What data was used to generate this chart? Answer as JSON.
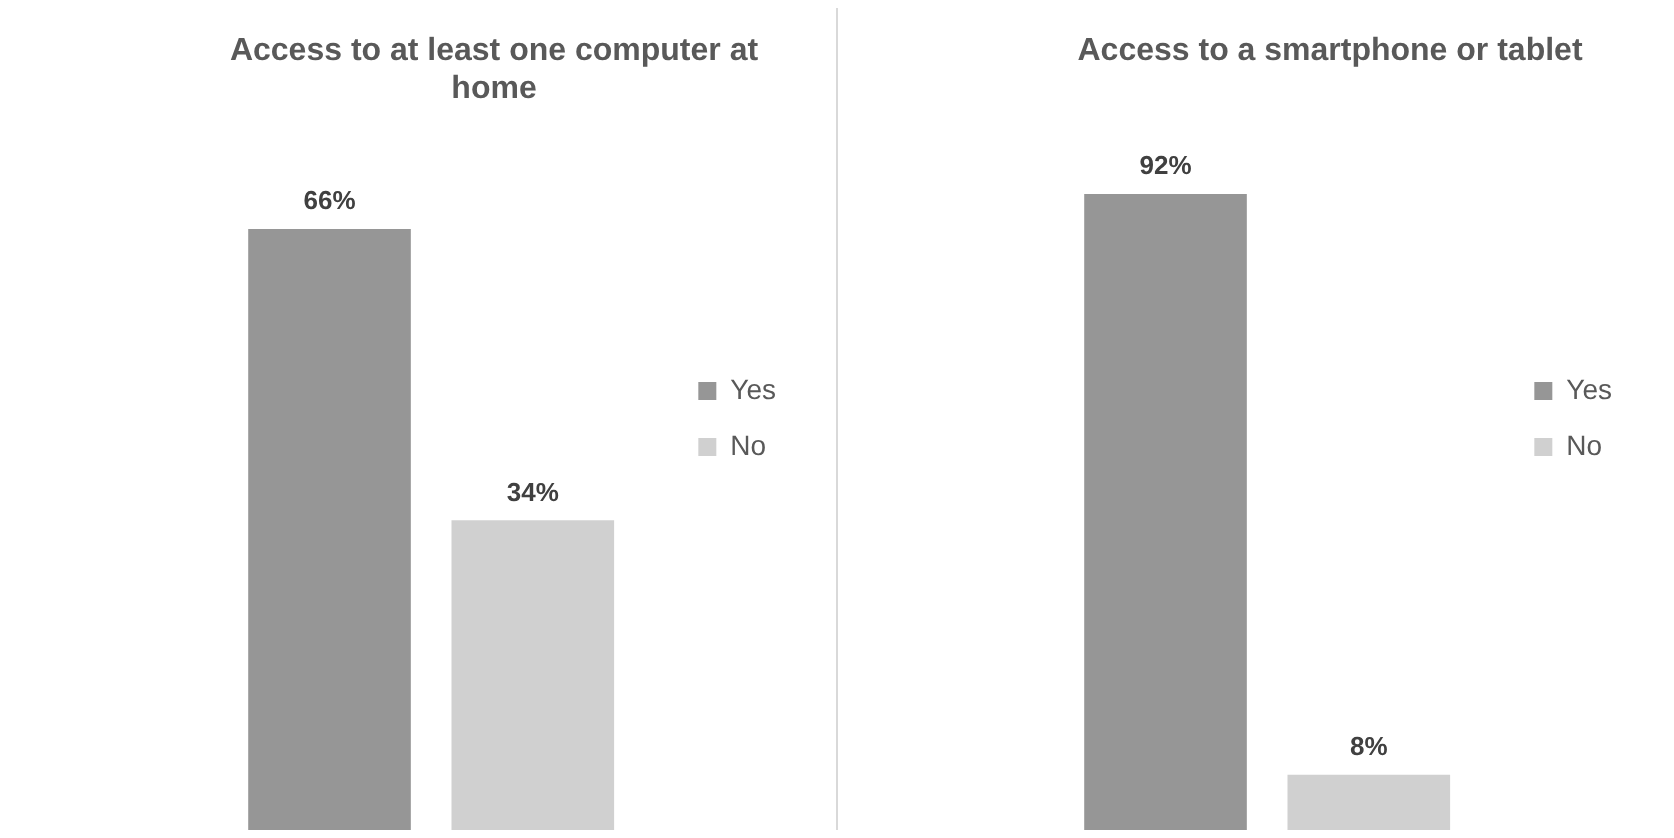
{
  "chart_data": [
    {
      "type": "bar",
      "title": "Access to at least one computer at home",
      "categories": [
        null
      ],
      "legend": "right",
      "series": [
        {
          "name": "Yes",
          "color": "#969696",
          "values": [
            66
          ],
          "value_labels": [
            "66%"
          ]
        },
        {
          "name": "No",
          "color": "#d0d0d0",
          "values": [
            34
          ],
          "value_labels": [
            "34%"
          ]
        }
      ]
    },
    {
      "type": "bar",
      "title": "Access to a smartphone or tablet",
      "categories": [
        null
      ],
      "legend": "right",
      "series": [
        {
          "name": "Yes",
          "color": "#969696",
          "values": [
            92
          ],
          "value_labels": [
            "92%"
          ]
        },
        {
          "name": "No",
          "color": "#d0d0d0",
          "values": [
            8
          ],
          "value_labels": [
            "8%"
          ]
        }
      ]
    }
  ]
}
